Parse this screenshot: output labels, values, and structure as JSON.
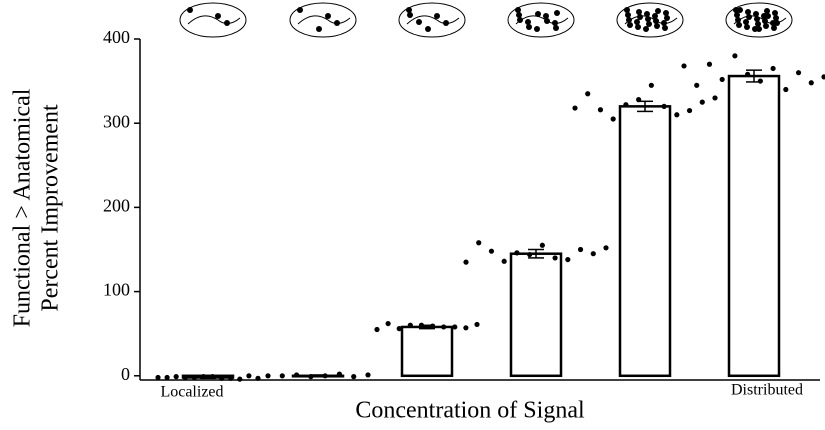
{
  "chart_data": {
    "type": "bar",
    "xlabel": "Concentration of Signal",
    "ylabel": [
      "Functional > Anatomical",
      "Percent Improvement"
    ],
    "annotations": [
      "Localized",
      "Distributed"
    ],
    "categories": [
      null,
      null,
      null,
      null,
      null,
      null
    ],
    "values": [
      -2,
      0,
      58,
      145,
      320,
      356
    ],
    "errors": [
      1,
      1,
      2,
      5,
      6,
      7
    ],
    "points": [
      [
        -2,
        -3,
        -1,
        -4,
        -2,
        -3,
        -1,
        -2,
        -3,
        -2,
        0,
        -1
      ],
      [
        0,
        1,
        -1,
        2,
        0,
        -1,
        1,
        0
      ],
      [
        55,
        58,
        60,
        62,
        57,
        59,
        56,
        61,
        58,
        60
      ],
      [
        135,
        140,
        148,
        150,
        146,
        152,
        155,
        158,
        138,
        136,
        145,
        144
      ],
      [
        318,
        320,
        316,
        315,
        322,
        330,
        345,
        335,
        310,
        305,
        325,
        328
      ],
      [
        368,
        365,
        370,
        360,
        380,
        355,
        350,
        345,
        340,
        352,
        348,
        358
      ]
    ],
    "color": "#ffffff",
    "edgecolor": "#000000",
    "point_color": "#000000",
    "ylim": [
      -5,
      400
    ],
    "yticks": [
      0,
      100,
      200,
      300,
      400
    ]
  }
}
